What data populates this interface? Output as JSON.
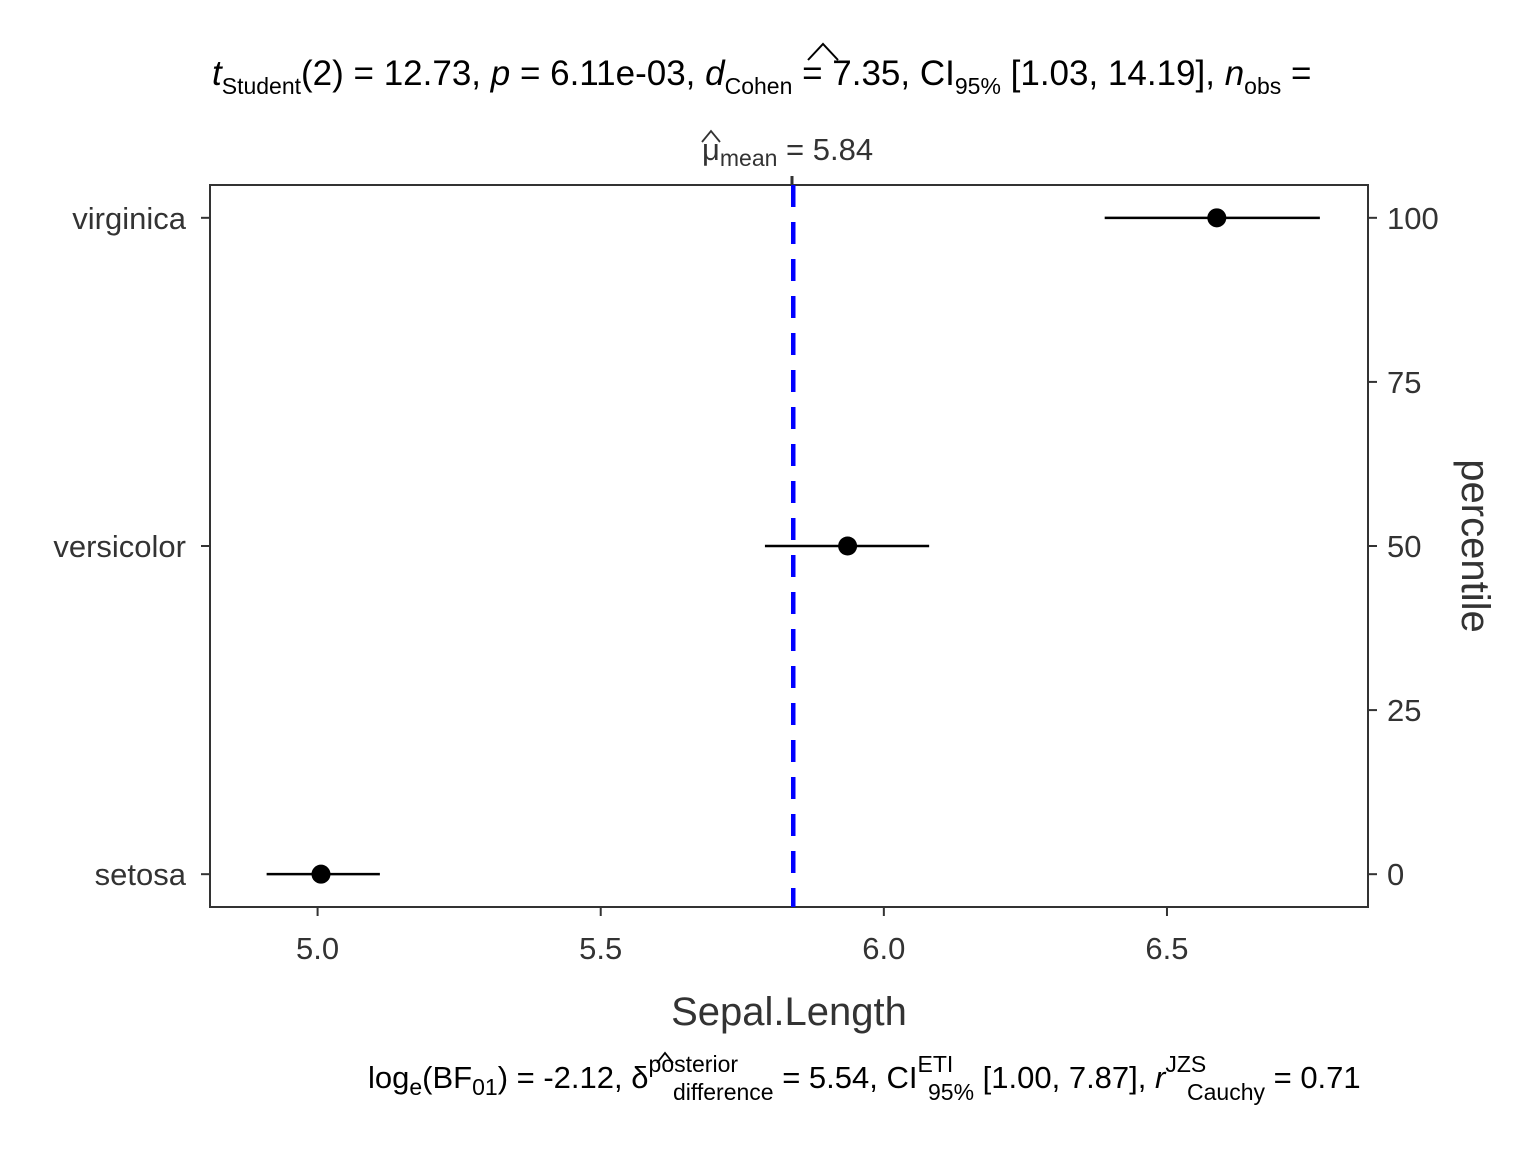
{
  "chart_data": {
    "type": "scatter",
    "subtitle": {
      "t_symbol": "t",
      "t_sub": "Student",
      "df": "(2) = 12.73,",
      "p_symbol": "p",
      "p_text": " = 6.11e-03,",
      "d_symbol": "d",
      "d_sub": "Cohen",
      "d_text": " = 7.35, CI",
      "ci_sub": "95%",
      "ci_text": " [1.03, 14.19],",
      "n_symbol": "n",
      "n_sub": "obs",
      "n_text": " ="
    },
    "mean_label": {
      "symbol": "μ",
      "sub": "mean",
      "text": " = 5.84"
    },
    "mean_line": {
      "value": 5.84,
      "color": "#0000ff"
    },
    "categories": [
      "setosa",
      "versicolor",
      "virginica"
    ],
    "points": [
      {
        "category": "setosa",
        "percentile": 0,
        "mean": 5.006,
        "low": 4.91,
        "high": 5.11
      },
      {
        "category": "versicolor",
        "percentile": 50,
        "mean": 5.936,
        "low": 5.79,
        "high": 6.08
      },
      {
        "category": "virginica",
        "percentile": 100,
        "mean": 6.588,
        "low": 6.39,
        "high": 6.77
      }
    ],
    "xlabel": "Sepal.Length",
    "ylabel_right": "percentile",
    "xlim": [
      4.81,
      6.855
    ],
    "ylim": [
      -5,
      105
    ],
    "x_ticks": [
      "5.0",
      "5.5",
      "6.0",
      "6.5"
    ],
    "x_tick_values": [
      5.0,
      5.5,
      6.0,
      6.5
    ],
    "y_ticks_right": [
      "0",
      "25",
      "50",
      "75",
      "100"
    ],
    "y_tick_values_right": [
      0,
      25,
      50,
      75,
      100
    ],
    "grid": false,
    "point_color": "#000000",
    "caption": {
      "log_text": "log",
      "log_sub": "e",
      "bf_open": "(BF",
      "bf_sub": "01",
      "bf_close": ") = -2.12,",
      "delta_symbol": "δ",
      "delta_sup": "posterior",
      "delta_sub": "difference",
      "delta_text": " = 5.54, CI",
      "ci_sup": "ETI",
      "ci_sub": "95%",
      "ci_text": " [1.00, 7.87],",
      "r_symbol": "r",
      "r_sup": "JZS",
      "r_sub": "Cauchy",
      "r_text": " = 0.71"
    }
  }
}
